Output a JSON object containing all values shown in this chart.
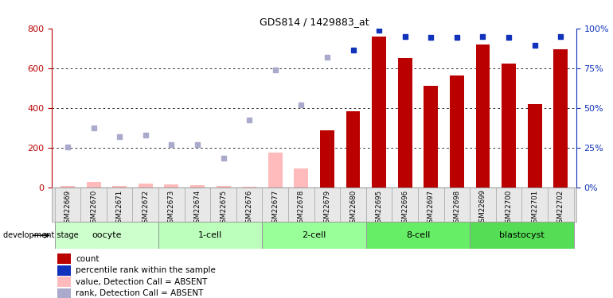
{
  "title": "GDS814 / 1429883_at",
  "samples": [
    "GSM22669",
    "GSM22670",
    "GSM22671",
    "GSM22672",
    "GSM22673",
    "GSM22674",
    "GSM22675",
    "GSM22676",
    "GSM22677",
    "GSM22678",
    "GSM22679",
    "GSM22680",
    "GSM22695",
    "GSM22696",
    "GSM22697",
    "GSM22698",
    "GSM22699",
    "GSM22700",
    "GSM22701",
    "GSM22702"
  ],
  "count_present": [
    null,
    null,
    null,
    null,
    null,
    null,
    null,
    null,
    null,
    null,
    290,
    385,
    760,
    650,
    510,
    565,
    720,
    625,
    420,
    695
  ],
  "count_absent": [
    8,
    30,
    8,
    22,
    18,
    12,
    10,
    5,
    5,
    8,
    null,
    null,
    null,
    null,
    null,
    null,
    null,
    null,
    null,
    null
  ],
  "rank_present": [
    null,
    null,
    null,
    null,
    null,
    null,
    null,
    null,
    null,
    null,
    null,
    690,
    790,
    760,
    755,
    755,
    757,
    755,
    715,
    760
  ],
  "rank_absent": [
    205,
    300,
    255,
    265,
    215,
    215,
    150,
    340,
    590,
    415,
    655,
    null,
    null,
    null,
    null,
    null,
    null,
    null,
    null,
    null
  ],
  "count_absent_tall": [
    null,
    null,
    null,
    null,
    null,
    null,
    null,
    null,
    175,
    95,
    null,
    null,
    null,
    null,
    null,
    null,
    null,
    null,
    null,
    null
  ],
  "stages": [
    {
      "label": "oocyte",
      "start": 0,
      "end": 4,
      "color": "#ccffcc"
    },
    {
      "label": "1-cell",
      "start": 4,
      "end": 8,
      "color": "#bbffbb"
    },
    {
      "label": "2-cell",
      "start": 8,
      "end": 12,
      "color": "#99ff99"
    },
    {
      "label": "8-cell",
      "start": 12,
      "end": 16,
      "color": "#66ee66"
    },
    {
      "label": "blastocyst",
      "start": 16,
      "end": 20,
      "color": "#55dd55"
    }
  ],
  "ylim_left": [
    0,
    800
  ],
  "ylim_right": [
    0,
    100
  ],
  "yticks_left": [
    0,
    200,
    400,
    600,
    800
  ],
  "yticks_right": [
    0,
    25,
    50,
    75,
    100
  ],
  "color_count": "#bb0000",
  "color_count_absent": "#ffbbbb",
  "color_rank": "#1133bb",
  "color_rank_absent": "#aaaacc",
  "bar_width": 0.55,
  "legend_items": [
    {
      "color": "#bb0000",
      "label": "count"
    },
    {
      "color": "#1133bb",
      "label": "percentile rank within the sample"
    },
    {
      "color": "#ffbbbb",
      "label": "value, Detection Call = ABSENT"
    },
    {
      "color": "#aaaacc",
      "label": "rank, Detection Call = ABSENT"
    }
  ]
}
